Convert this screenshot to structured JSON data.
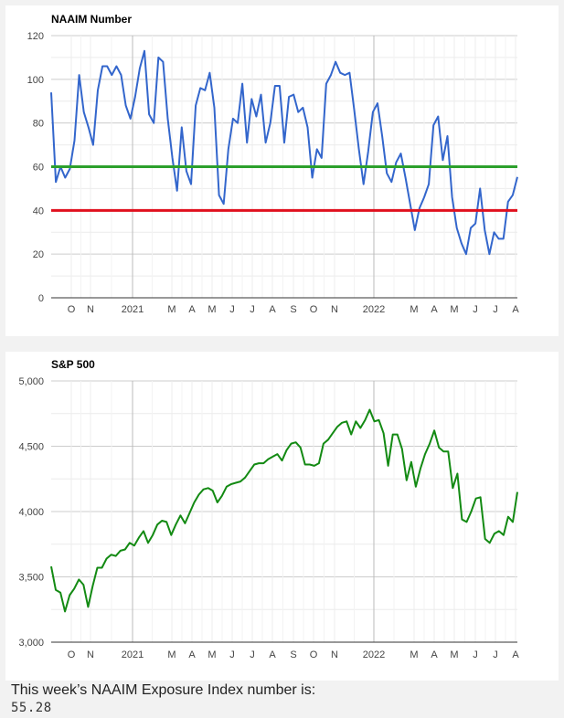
{
  "chart_data": [
    {
      "type": "line",
      "title": "NAAIM Number",
      "ylim": [
        0,
        120
      ],
      "y_ticks": [
        "0",
        "20",
        "40",
        "60",
        "80",
        "100",
        "120"
      ],
      "x_ticks": [
        "O",
        "N",
        "2021",
        "M",
        "A",
        "M",
        "J",
        "J",
        "A",
        "S",
        "O",
        "N",
        "2022",
        "M",
        "A",
        "M",
        "J",
        "J",
        "A"
      ],
      "grid": true,
      "reference_lines": [
        {
          "value": 60,
          "color": "#2ca02c"
        },
        {
          "value": 40,
          "color": "#e0101e"
        }
      ],
      "series": [
        {
          "color": "#3366cc",
          "values": [
            94,
            53,
            60,
            55,
            59,
            72,
            102,
            85,
            78,
            70,
            95,
            106,
            106,
            102,
            106,
            102,
            88,
            82,
            92,
            105,
            113,
            84,
            80,
            110,
            108,
            82,
            64,
            49,
            78,
            58,
            52,
            88,
            96,
            95,
            103,
            87,
            47,
            43,
            68,
            82,
            80,
            98,
            71,
            91,
            83,
            93,
            71,
            80,
            97,
            97,
            71,
            92,
            93,
            85,
            87,
            78,
            55,
            68,
            64,
            98,
            102,
            108,
            103,
            102,
            103,
            86,
            68,
            52,
            67,
            85,
            89,
            74,
            57,
            53,
            62,
            66,
            55,
            43,
            31,
            41,
            46,
            52,
            79,
            83,
            63,
            74,
            46,
            32,
            25,
            20,
            32,
            34,
            50,
            31,
            20,
            30,
            27,
            27,
            44,
            47,
            55.28
          ]
        }
      ]
    },
    {
      "type": "line",
      "title": "S&P 500",
      "ylim": [
        3000,
        5000
      ],
      "y_ticks": [
        "3,000",
        "3,500",
        "4,000",
        "4,500",
        "5,000"
      ],
      "x_ticks": [
        "O",
        "N",
        "2021",
        "M",
        "A",
        "M",
        "J",
        "J",
        "A",
        "S",
        "O",
        "N",
        "2022",
        "M",
        "A",
        "M",
        "J",
        "J",
        "A"
      ],
      "grid": true,
      "series": [
        {
          "color": "#138a13",
          "values": [
            3580,
            3400,
            3380,
            3235,
            3360,
            3410,
            3480,
            3440,
            3270,
            3430,
            3570,
            3570,
            3640,
            3670,
            3660,
            3700,
            3710,
            3760,
            3740,
            3800,
            3850,
            3760,
            3820,
            3900,
            3930,
            3920,
            3820,
            3900,
            3970,
            3910,
            3990,
            4070,
            4130,
            4170,
            4180,
            4160,
            4070,
            4120,
            4190,
            4210,
            4220,
            4230,
            4260,
            4310,
            4360,
            4370,
            4370,
            4400,
            4420,
            4440,
            4390,
            4470,
            4520,
            4530,
            4490,
            4360,
            4360,
            4350,
            4370,
            4520,
            4550,
            4600,
            4650,
            4680,
            4690,
            4590,
            4690,
            4640,
            4700,
            4780,
            4690,
            4700,
            4600,
            4350,
            4590,
            4590,
            4480,
            4240,
            4380,
            4190,
            4330,
            4440,
            4520,
            4620,
            4490,
            4460,
            4460,
            4180,
            4290,
            3940,
            3920,
            4000,
            4100,
            4110,
            3790,
            3760,
            3830,
            3850,
            3820,
            3960,
            3920,
            4150
          ]
        }
      ]
    }
  ],
  "caption": {
    "label": "This week’s NAAIM Exposure Index number is:",
    "value": "55.28"
  }
}
